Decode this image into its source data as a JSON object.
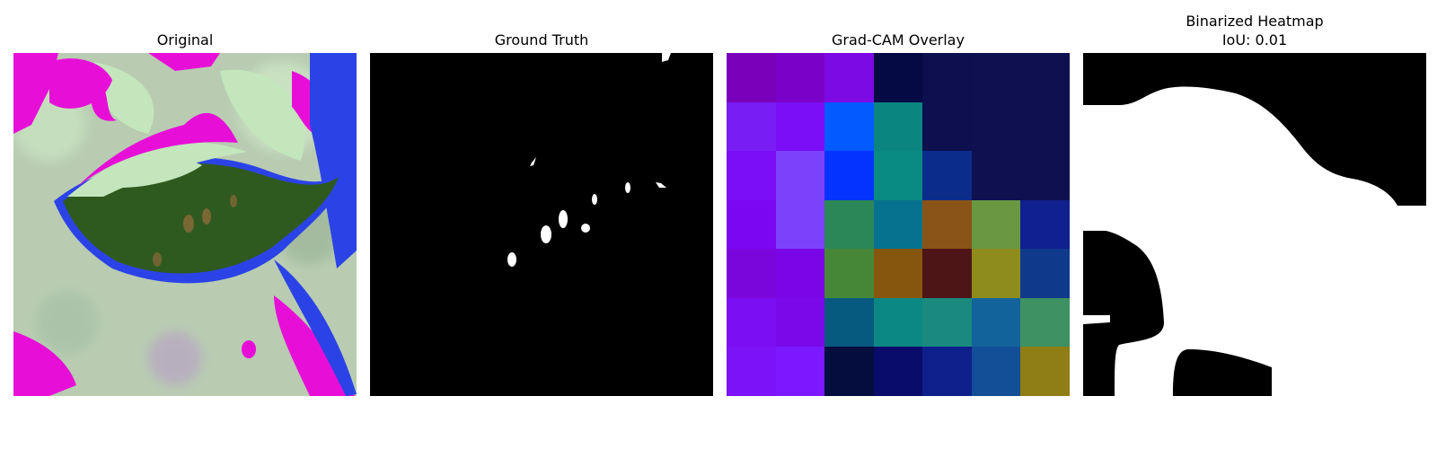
{
  "panels": {
    "original": {
      "title": "Original"
    },
    "ground_truth": {
      "title": "Ground Truth"
    },
    "gradcam": {
      "title": "Grad-CAM Overlay",
      "grid_colors": [
        [
          "#7b00b9",
          "#7a02c8",
          "#7c0ae4",
          "#050a45",
          "#0e0f4f",
          "#0f104f",
          "#0f104f"
        ],
        [
          "#781ef5",
          "#7b0ef6",
          "#035aff",
          "#0b8580",
          "#0d0f4e",
          "#0f104f",
          "#0f104f"
        ],
        [
          "#7b0ef6",
          "#7b42fb",
          "#0433ff",
          "#098a82",
          "#0c2c8c",
          "#0f104f",
          "#0f104f"
        ],
        [
          "#7a06f2",
          "#7c42fb",
          "#2b8758",
          "#07728f",
          "#8a5419",
          "#699742",
          "#10208e"
        ],
        [
          "#7b06dc",
          "#7a06e8",
          "#468737",
          "#86560f",
          "#4e1517",
          "#8e8c1c",
          "#0f3a8c"
        ],
        [
          "#7b0ef3",
          "#7a08e8",
          "#075a7f",
          "#0b8884",
          "#1a8a7e",
          "#12639b",
          "#3d9162"
        ],
        [
          "#7b12f7",
          "#7b18ff",
          "#040d3e",
          "#090c6a",
          "#0f1f8c",
          "#124f96",
          "#8f7d15"
        ]
      ]
    },
    "binarized": {
      "title_line1": "Binarized Heatmap",
      "title_line2": "IoU: 0.01"
    }
  }
}
